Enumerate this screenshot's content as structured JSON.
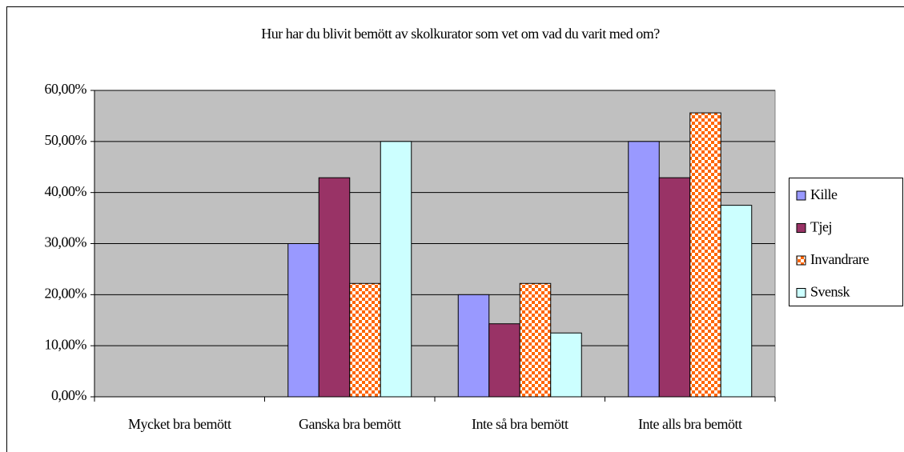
{
  "chart_data": {
    "type": "bar",
    "title": "Hur har du blivit bemött av skolkurator som vet om vad du varit med om?",
    "categories": [
      "Mycket bra bemött",
      "Ganska bra bemött",
      "Inte så bra bemött",
      "Inte alls bra bemött"
    ],
    "series": [
      {
        "name": "Kille",
        "color": "#9999ff",
        "values": [
          0,
          30,
          20,
          50
        ]
      },
      {
        "name": "Tjej",
        "color": "#993366",
        "values": [
          0,
          42.9,
          14.3,
          42.9
        ]
      },
      {
        "name": "Invandrare",
        "color": "#ff6600",
        "pattern": "checker",
        "values": [
          0,
          22.2,
          22.2,
          55.6
        ]
      },
      {
        "name": "Svensk",
        "color": "#ccffff",
        "values": [
          0,
          50,
          12.5,
          37.5
        ]
      }
    ],
    "ylim": [
      0,
      60
    ],
    "yticks": [
      {
        "value": 0,
        "label": "0,00%"
      },
      {
        "value": 10,
        "label": "10,00%"
      },
      {
        "value": 20,
        "label": "20,00%"
      },
      {
        "value": 30,
        "label": "30,00%"
      },
      {
        "value": 40,
        "label": "40,00%"
      },
      {
        "value": 50,
        "label": "50,00%"
      },
      {
        "value": 60,
        "label": "60,00%"
      }
    ],
    "grid": true,
    "legend": "right"
  }
}
